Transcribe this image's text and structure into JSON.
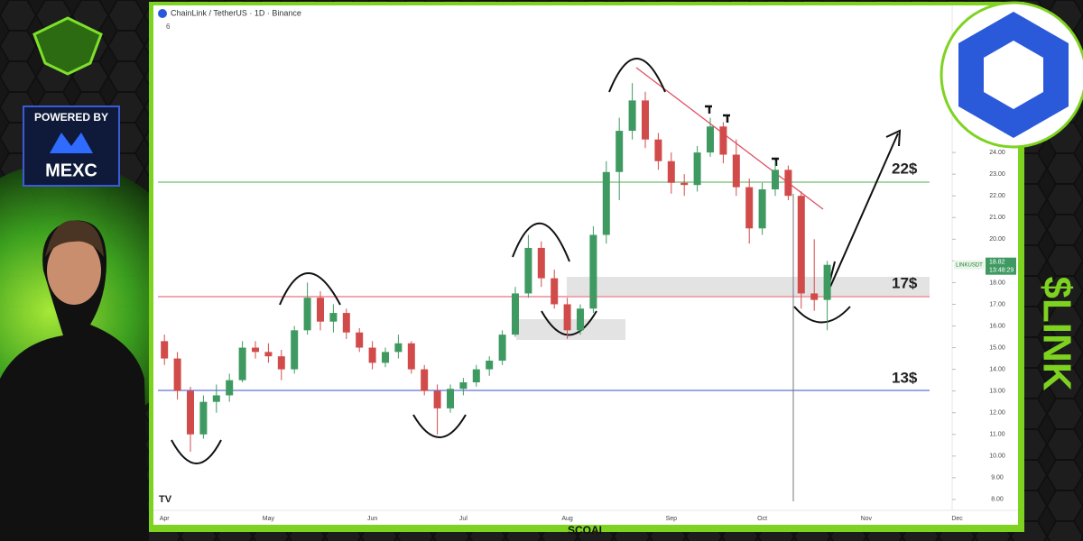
{
  "header": {
    "symbol_title": "ChainLink / TetherUS · 1D · Binance",
    "indicator": "6"
  },
  "branding": {
    "powered_by": "POWERED BY",
    "exchange": "MEXC",
    "ticker": "$LINK",
    "footer": "SCOAI"
  },
  "chart_data": {
    "type": "candlestick",
    "categories": [
      "Apr",
      null,
      null,
      null,
      null,
      null,
      null,
      null,
      "May",
      null,
      null,
      null,
      null,
      null,
      null,
      null,
      "Jun",
      null,
      null,
      null,
      null,
      null,
      null,
      "Jul",
      null,
      null,
      null,
      null,
      null,
      null,
      null,
      "Aug",
      null,
      null,
      null,
      null,
      null,
      null,
      null,
      "Sep",
      null,
      null,
      null,
      null,
      null,
      null,
      "Oct",
      null,
      null,
      null,
      null,
      null,
      null,
      null,
      "Nov",
      null,
      null,
      null,
      null,
      null,
      null,
      "Dec",
      null,
      null
    ],
    "open": [
      15.3,
      14.5,
      13.0,
      11.0,
      12.5,
      12.8,
      13.5,
      15.0,
      14.8,
      14.6,
      14.0,
      15.8,
      17.3,
      16.2,
      16.6,
      15.7,
      15.0,
      14.3,
      14.8,
      15.2,
      14.0,
      13.0,
      12.2,
      13.1,
      13.4,
      14.0,
      14.4,
      15.6,
      17.5,
      19.6,
      18.2,
      17.0,
      15.8,
      16.8,
      20.2,
      23.1,
      25.0,
      26.4,
      24.6,
      23.6,
      22.6,
      22.5,
      24.0,
      25.2,
      23.9,
      22.4,
      20.5,
      22.3,
      23.2,
      22.0,
      17.5,
      17.2,
      null,
      null,
      null,
      null,
      null,
      null,
      null,
      null,
      null,
      null,
      null,
      null
    ],
    "high": [
      15.6,
      14.8,
      13.2,
      12.8,
      13.3,
      13.8,
      15.3,
      15.3,
      15.2,
      14.9,
      16.0,
      18.0,
      17.6,
      17.0,
      16.8,
      15.9,
      15.3,
      15.0,
      15.6,
      15.3,
      14.2,
      13.3,
      13.3,
      13.6,
      14.2,
      14.6,
      15.8,
      17.8,
      20.2,
      19.9,
      18.6,
      17.3,
      17.0,
      20.6,
      23.6,
      25.6,
      27.2,
      26.8,
      24.9,
      24.0,
      23.0,
      24.3,
      25.6,
      25.4,
      24.6,
      22.8,
      22.6,
      23.6,
      23.4,
      22.2,
      20.0,
      19.0,
      null,
      null,
      null,
      null,
      null,
      null,
      null,
      null,
      null,
      null,
      null,
      null
    ],
    "low": [
      14.2,
      12.6,
      10.2,
      10.8,
      12.0,
      12.5,
      13.4,
      14.5,
      14.3,
      13.5,
      13.8,
      15.6,
      15.8,
      15.7,
      15.4,
      14.8,
      14.0,
      14.1,
      14.5,
      13.8,
      12.8,
      11.0,
      12.0,
      12.8,
      13.2,
      13.7,
      14.2,
      15.5,
      17.3,
      17.8,
      16.8,
      15.4,
      15.6,
      16.6,
      19.8,
      21.8,
      24.6,
      24.2,
      23.2,
      22.1,
      22.0,
      22.2,
      23.8,
      23.5,
      22.0,
      19.8,
      20.2,
      22.0,
      21.8,
      16.8,
      16.7,
      15.8,
      null,
      null,
      null,
      null,
      null,
      null,
      null,
      null,
      null,
      null,
      null,
      null
    ],
    "close": [
      14.5,
      13.0,
      11.0,
      12.5,
      12.8,
      13.5,
      15.0,
      14.8,
      14.6,
      14.0,
      15.8,
      17.3,
      16.2,
      16.6,
      15.7,
      15.0,
      14.3,
      14.8,
      15.2,
      14.0,
      13.0,
      12.2,
      13.1,
      13.4,
      14.0,
      14.4,
      15.6,
      17.5,
      19.6,
      18.2,
      17.0,
      15.8,
      16.8,
      20.2,
      23.1,
      25.0,
      26.4,
      24.6,
      23.6,
      22.6,
      22.5,
      24.0,
      25.2,
      23.9,
      22.4,
      20.5,
      22.3,
      23.2,
      22.0,
      17.5,
      17.2,
      18.82,
      null,
      null,
      null,
      null,
      null,
      null,
      null,
      null,
      null,
      null,
      null,
      null
    ],
    "up_color": "#3f9a62",
    "down_color": "#d24b4b",
    "ylim": [
      7.33,
      30.7
    ],
    "yticks": [
      {
        "value": 8,
        "label": "8.00"
      },
      {
        "value": 9,
        "label": "9.00"
      },
      {
        "value": 10,
        "label": "10.00"
      },
      {
        "value": 11,
        "label": "11.00"
      },
      {
        "value": 12,
        "label": "12.00"
      },
      {
        "value": 13,
        "label": "13.00"
      },
      {
        "value": 14,
        "label": "14.00"
      },
      {
        "value": 15,
        "label": "15.00"
      },
      {
        "value": 16,
        "label": "16.00"
      },
      {
        "value": 17,
        "label": "17.00"
      },
      {
        "value": 18,
        "label": "18.00"
      },
      {
        "value": 19,
        "label": "19.00"
      },
      {
        "value": 20,
        "label": "20.00"
      },
      {
        "value": 21,
        "label": "21.00"
      },
      {
        "value": 22,
        "label": "22.00"
      },
      {
        "value": 23,
        "label": "23.00"
      },
      {
        "value": 24,
        "label": "24.00"
      }
    ],
    "price_tag": {
      "symbol": "LINKUSDT",
      "value": 18.82,
      "label": "18.82",
      "countdown": "13:48:29"
    },
    "annotations": [
      "22$",
      "17$",
      "13$"
    ]
  }
}
